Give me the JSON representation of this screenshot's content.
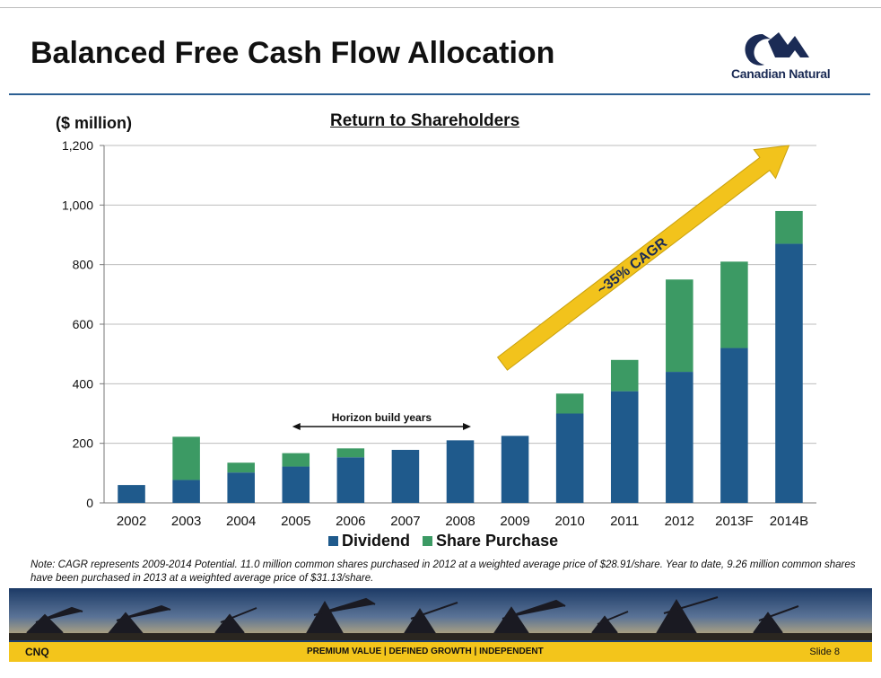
{
  "slide": {
    "title": "Balanced Free Cash Flow Allocation",
    "logo_text": "Canadian Natural",
    "logo_icon": "canadian-natural-logo",
    "unit_label": "($ million)",
    "note": "Note: CAGR represents 2009-2014 Potential. 11.0 million common shares purchased in 2012 at a weighted average price of $28.91/share. Year to date, 9.26 million common shares have been purchased in 2013 at a weighted average price of $31.13/share.",
    "footer": {
      "left": "CNQ",
      "center": "PREMIUM VALUE  |  DEFINED GROWTH  |  INDEPENDENT",
      "right": "Slide 8"
    },
    "colors": {
      "title_rule": "#2c5f93",
      "footer_bar": "#f3c51b",
      "dividend": "#1f5a8c",
      "share_purchase": "#3c9a64",
      "arrow": "#f2c31c"
    }
  },
  "chart_data": {
    "type": "bar",
    "stacked": true,
    "title": "Return to Shareholders",
    "ylabel": "($ million)",
    "xlabel": "",
    "ylim": [
      0,
      1200
    ],
    "yticks": [
      0,
      200,
      400,
      600,
      800,
      1000,
      1200
    ],
    "ytick_labels": [
      "0",
      "200",
      "400",
      "600",
      "800",
      "1,000",
      "1,200"
    ],
    "grid": true,
    "legend_position": "bottom",
    "categories": [
      "2002",
      "2003",
      "2004",
      "2005",
      "2006",
      "2007",
      "2008",
      "2009",
      "2010",
      "2011",
      "2012",
      "2013F",
      "2014B"
    ],
    "series": [
      {
        "name": "Dividend",
        "color": "#1f5a8c",
        "values": [
          60,
          77,
          102,
          122,
          153,
          178,
          210,
          225,
          300,
          375,
          440,
          520,
          870
        ]
      },
      {
        "name": "Share Purchase",
        "color": "#3c9a64",
        "values": [
          0,
          145,
          33,
          45,
          30,
          0,
          0,
          0,
          67,
          105,
          310,
          290,
          110
        ]
      }
    ],
    "annotations": [
      {
        "text": "Horizon build years",
        "from": "2005",
        "to": "2008"
      },
      {
        "text": "~35% CAGR",
        "from": "2009",
        "to": "2014B"
      }
    ]
  }
}
